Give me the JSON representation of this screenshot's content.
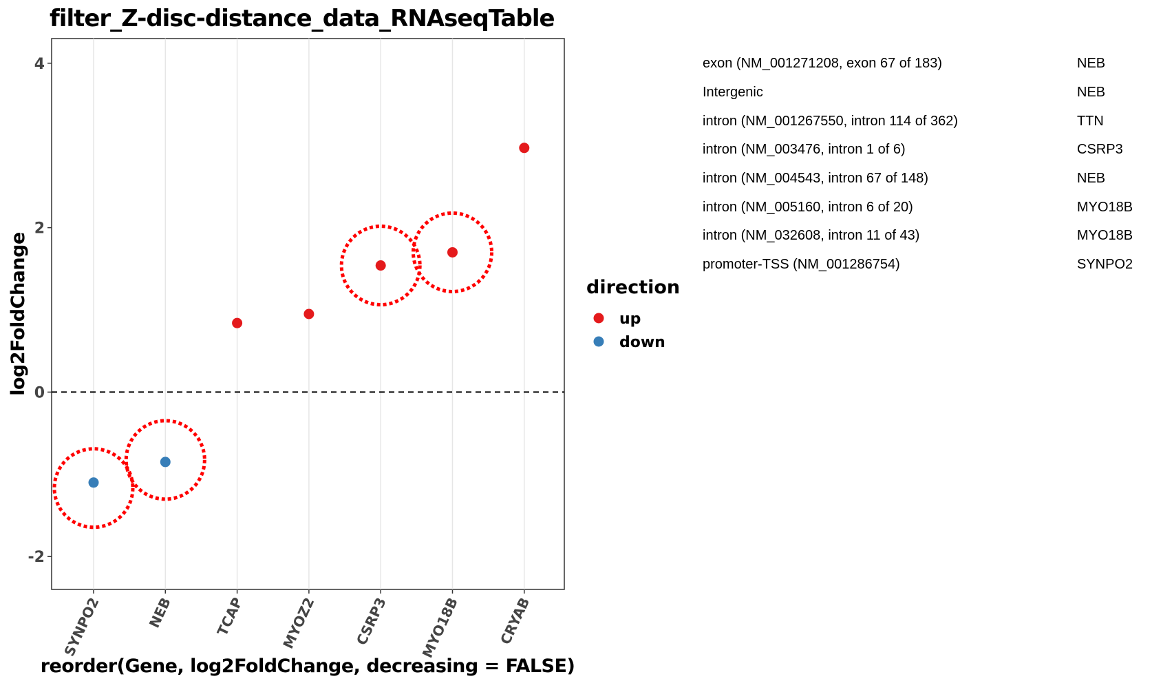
{
  "chart_data": {
    "type": "scatter",
    "title": "filter_Z-disc-distance_data_RNAseqTable",
    "xlabel": "reorder(Gene, log2FoldChange, decreasing = FALSE)",
    "ylabel": "log2FoldChange",
    "categories": [
      "SYNPO2",
      "NEB",
      "TCAP",
      "MYOZ2",
      "CSRP3",
      "MYO18B",
      "CRYAB"
    ],
    "values": [
      -1.1,
      -0.85,
      0.84,
      0.95,
      1.54,
      1.7,
      2.97
    ],
    "direction": [
      "down",
      "down",
      "up",
      "up",
      "up",
      "up",
      "up"
    ],
    "highlighted": [
      "SYNPO2",
      "NEB",
      "CSRP3",
      "MYO18B"
    ],
    "ylim": [
      -2.4,
      4.3
    ],
    "yticks": [
      -2,
      0,
      2,
      4
    ],
    "reference_line_y": 0,
    "grid": true,
    "legend": {
      "title": "direction",
      "placement": "right",
      "entries": [
        {
          "label": "up",
          "color": "#e41a1c"
        },
        {
          "label": "down",
          "color": "#377eb8"
        }
      ]
    },
    "highlight_color": "#ff0000"
  },
  "annotations": [
    {
      "annotation": "exon (NM_001271208, exon 67 of 183)",
      "gene": "NEB"
    },
    {
      "annotation": "Intergenic",
      "gene": "NEB"
    },
    {
      "annotation": "intron (NM_001267550, intron 114 of 362)",
      "gene": "TTN"
    },
    {
      "annotation": "intron (NM_003476, intron 1 of 6)",
      "gene": "CSRP3"
    },
    {
      "annotation": "intron (NM_004543, intron 67 of 148)",
      "gene": "NEB"
    },
    {
      "annotation": "intron (NM_005160, intron 6 of 20)",
      "gene": "MYO18B"
    },
    {
      "annotation": "intron (NM_032608, intron 11 of 43)",
      "gene": "MYO18B"
    },
    {
      "annotation": "promoter-TSS (NM_001286754)",
      "gene": "SYNPO2"
    }
  ]
}
